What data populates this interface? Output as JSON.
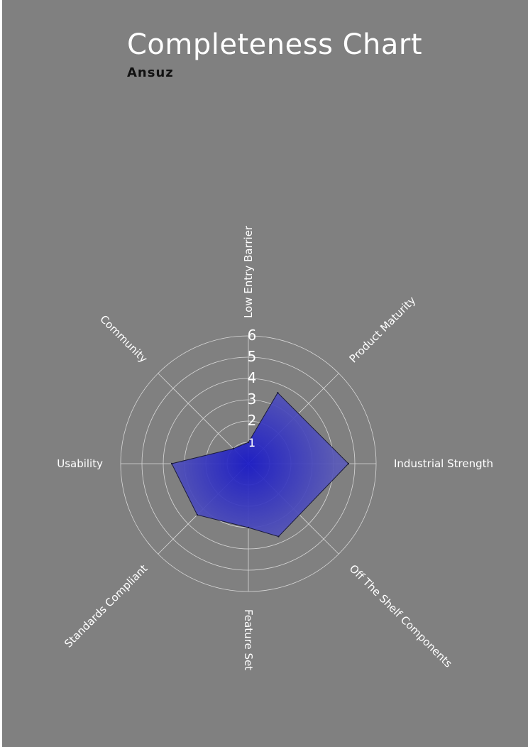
{
  "chart_data": {
    "type": "radar",
    "title": "Completeness Chart",
    "subtitle": "Ansuz",
    "axes": [
      "Low Entry Barrier",
      "Product Maturity",
      "Industrial Strength",
      "Off The Shelf Components",
      "Feature Set",
      "Standards Compliant",
      "Usability",
      "Community"
    ],
    "rlim": [
      0,
      6
    ],
    "ticks": [
      "1",
      "2",
      "3",
      "4",
      "5",
      "6"
    ],
    "series": [
      {
        "values": [
          1.0,
          3.6,
          4.7,
          3.7,
          3.0,
          3.4,
          3.6,
          1.0
        ],
        "offsets": [
          0,
          -0.5,
          0,
          0.5,
          0,
          0,
          0,
          0
        ],
        "color": "#2a2aa8"
      }
    ],
    "grid": true
  }
}
